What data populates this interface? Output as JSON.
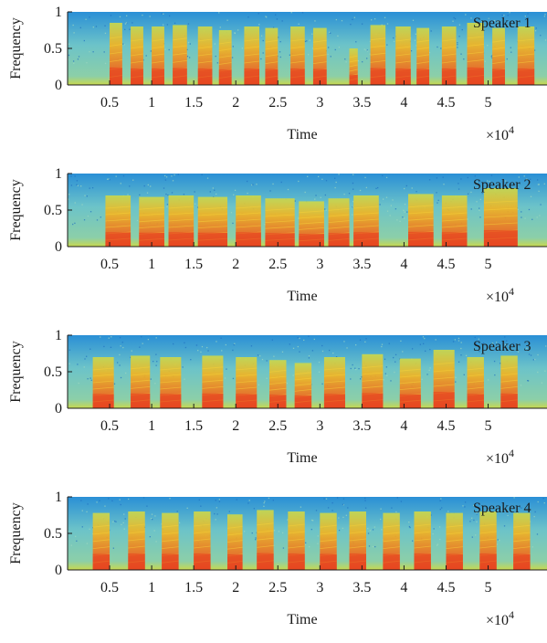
{
  "chart_data": [
    {
      "type": "heatmap",
      "title": "",
      "speaker_label": "Speaker 1",
      "xlabel": "Time",
      "ylabel": "Frequency",
      "x_multiplier": "×10",
      "x_multiplier_exp": "4",
      "xlim": [
        0,
        5.7
      ],
      "ylim": [
        0,
        1
      ],
      "x_ticks": [
        "0.5",
        "1",
        "1.5",
        "2",
        "2.5",
        "3",
        "3.5",
        "4",
        "4.5",
        "5"
      ],
      "y_ticks": [
        "0",
        "0.5",
        "1"
      ],
      "colormap": [
        "#2a8fd6",
        "#6cc3c9",
        "#c9d84e",
        "#f0b323",
        "#e8421e"
      ],
      "bursts": [
        [
          0.5,
          0.65,
          0.85
        ],
        [
          0.75,
          0.9,
          0.8
        ],
        [
          1.0,
          1.15,
          0.8
        ],
        [
          1.25,
          1.42,
          0.82
        ],
        [
          1.55,
          1.72,
          0.8
        ],
        [
          1.8,
          1.95,
          0.75
        ],
        [
          2.1,
          2.28,
          0.8
        ],
        [
          2.35,
          2.5,
          0.78
        ],
        [
          2.65,
          2.82,
          0.8
        ],
        [
          2.92,
          3.08,
          0.78
        ],
        [
          3.35,
          3.45,
          0.5
        ],
        [
          3.6,
          3.78,
          0.82
        ],
        [
          3.9,
          4.08,
          0.8
        ],
        [
          4.15,
          4.3,
          0.78
        ],
        [
          4.45,
          4.62,
          0.8
        ],
        [
          4.75,
          4.95,
          0.85
        ],
        [
          5.05,
          5.2,
          0.78
        ],
        [
          5.35,
          5.55,
          0.8
        ]
      ]
    },
    {
      "type": "heatmap",
      "title": "",
      "speaker_label": "Speaker 2",
      "xlabel": "Time",
      "ylabel": "Frequency",
      "x_multiplier": "×10",
      "x_multiplier_exp": "4",
      "xlim": [
        0,
        5.7
      ],
      "ylim": [
        0,
        1
      ],
      "x_ticks": [
        "0.5",
        "1",
        "1.5",
        "2",
        "2.5",
        "3",
        "3.5",
        "4",
        "4.5",
        "5"
      ],
      "y_ticks": [
        "0",
        "0.5",
        "1"
      ],
      "colormap": [
        "#2a8fd6",
        "#6cc3c9",
        "#c9d84e",
        "#f0b323",
        "#e8421e"
      ],
      "bursts": [
        [
          0.45,
          0.75,
          0.7
        ],
        [
          0.85,
          1.15,
          0.68
        ],
        [
          1.2,
          1.5,
          0.7
        ],
        [
          1.55,
          1.9,
          0.68
        ],
        [
          2.0,
          2.3,
          0.7
        ],
        [
          2.35,
          2.7,
          0.66
        ],
        [
          2.75,
          3.05,
          0.62
        ],
        [
          3.1,
          3.35,
          0.66
        ],
        [
          3.4,
          3.7,
          0.7
        ],
        [
          4.05,
          4.35,
          0.72
        ],
        [
          4.45,
          4.75,
          0.7
        ],
        [
          4.95,
          5.35,
          0.8
        ]
      ]
    },
    {
      "type": "heatmap",
      "title": "",
      "speaker_label": "Speaker 3",
      "xlabel": "Time",
      "ylabel": "Frequency",
      "x_multiplier": "×10",
      "x_multiplier_exp": "4",
      "xlim": [
        0,
        5.7
      ],
      "ylim": [
        0,
        1
      ],
      "x_ticks": [
        "0.5",
        "1",
        "1.5",
        "2",
        "2.5",
        "3",
        "3.5",
        "4",
        "4.5",
        "5"
      ],
      "y_ticks": [
        "0",
        "0.5",
        "1"
      ],
      "colormap": [
        "#2a8fd6",
        "#6cc3c9",
        "#c9d84e",
        "#f0b323",
        "#e8421e"
      ],
      "bursts": [
        [
          0.3,
          0.55,
          0.7
        ],
        [
          0.75,
          0.98,
          0.72
        ],
        [
          1.1,
          1.35,
          0.7
        ],
        [
          1.6,
          1.85,
          0.72
        ],
        [
          2.0,
          2.25,
          0.7
        ],
        [
          2.4,
          2.6,
          0.66
        ],
        [
          2.7,
          2.9,
          0.62
        ],
        [
          3.05,
          3.3,
          0.7
        ],
        [
          3.5,
          3.75,
          0.74
        ],
        [
          3.95,
          4.2,
          0.68
        ],
        [
          4.35,
          4.6,
          0.8
        ],
        [
          4.75,
          4.95,
          0.7
        ],
        [
          5.15,
          5.35,
          0.72
        ]
      ]
    },
    {
      "type": "heatmap",
      "title": "",
      "speaker_label": "Speaker 4",
      "xlabel": "Time",
      "ylabel": "Frequency",
      "x_multiplier": "×10",
      "x_multiplier_exp": "4",
      "xlim": [
        0,
        5.7
      ],
      "ylim": [
        0,
        1
      ],
      "x_ticks": [
        "0.5",
        "1",
        "1.5",
        "2",
        "2.5",
        "3",
        "3.5",
        "4",
        "4.5",
        "5"
      ],
      "y_ticks": [
        "0",
        "0.5",
        "1"
      ],
      "colormap": [
        "#2a8fd6",
        "#6cc3c9",
        "#c9d84e",
        "#f0b323",
        "#e8421e"
      ],
      "bursts": [
        [
          0.3,
          0.5,
          0.78
        ],
        [
          0.72,
          0.92,
          0.8
        ],
        [
          1.12,
          1.32,
          0.78
        ],
        [
          1.5,
          1.7,
          0.8
        ],
        [
          1.9,
          2.08,
          0.76
        ],
        [
          2.25,
          2.45,
          0.82
        ],
        [
          2.62,
          2.82,
          0.8
        ],
        [
          3.0,
          3.2,
          0.78
        ],
        [
          3.35,
          3.55,
          0.8
        ],
        [
          3.75,
          3.95,
          0.78
        ],
        [
          4.12,
          4.32,
          0.8
        ],
        [
          4.5,
          4.7,
          0.78
        ],
        [
          4.9,
          5.1,
          0.8
        ],
        [
          5.3,
          5.5,
          0.78
        ]
      ]
    }
  ]
}
